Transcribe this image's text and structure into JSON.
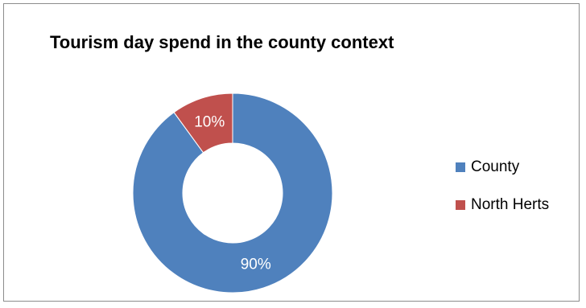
{
  "chart_data": {
    "type": "pie",
    "variant": "donut",
    "title": "Tourism day spend in the county context",
    "categories": [
      "County",
      "North Herts"
    ],
    "values": [
      90,
      10
    ],
    "labels": [
      "90%",
      "10%"
    ],
    "colors": [
      "#4f81bd",
      "#c0504d"
    ],
    "legend": "right"
  }
}
